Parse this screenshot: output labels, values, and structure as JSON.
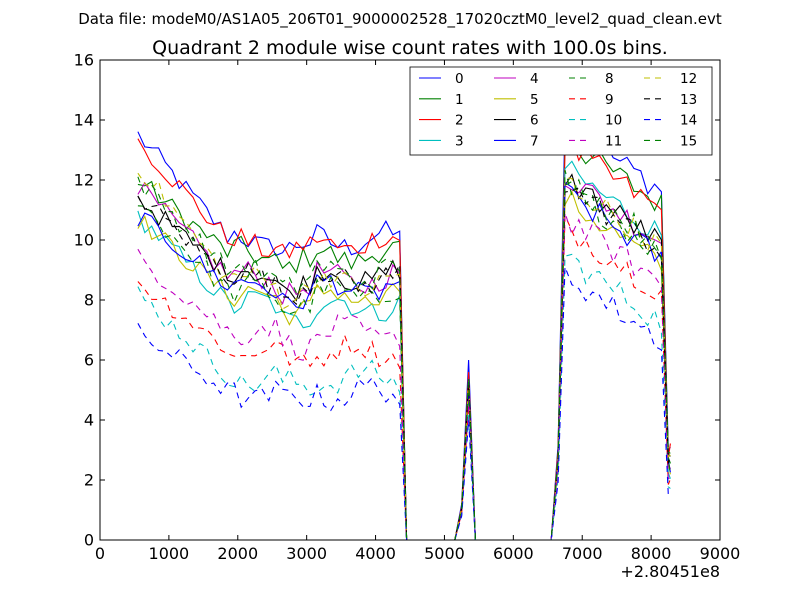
{
  "chart_data": {
    "type": "line",
    "suptitle": "Data file: modeM0/AS1A05_206T01_9000002528_17020cztM0_level2_quad_clean.evt",
    "title": "Quadrant 2 module wise count rates with 100.0s bins.",
    "xlabel": "",
    "ylabel": "",
    "x_offset_label": "+2.80451e8",
    "xlim": [
      0,
      9000
    ],
    "ylim": [
      0,
      16
    ],
    "xticks": [
      0,
      1000,
      2000,
      3000,
      4000,
      5000,
      6000,
      7000,
      8000,
      9000
    ],
    "yticks": [
      0,
      2,
      4,
      6,
      8,
      10,
      12,
      14,
      16
    ],
    "legend_position": "top-right",
    "legend_columns": 4,
    "x": [
      550,
      650,
      750,
      850,
      950,
      1050,
      1150,
      1250,
      1350,
      1450,
      1550,
      1650,
      1750,
      1850,
      1950,
      2050,
      2150,
      2250,
      2350,
      2450,
      2550,
      2650,
      2750,
      2850,
      2950,
      3050,
      3150,
      3250,
      3350,
      3450,
      3550,
      3650,
      3750,
      3850,
      3950,
      4050,
      4150,
      4250,
      4350,
      4450,
      4550,
      4650,
      4750,
      4850,
      4950,
      5050,
      5150,
      5250,
      5350,
      5450,
      5550,
      5650,
      5750,
      5850,
      5950,
      6050,
      6150,
      6250,
      6350,
      6450,
      6550,
      6650,
      6750,
      6850,
      6950,
      7050,
      7150,
      7250,
      7350,
      7450,
      7550,
      7650,
      7750,
      7850,
      7950,
      8050,
      8150,
      8250,
      8280
    ],
    "series": [
      {
        "name": "0",
        "color": "#0000ff",
        "dash": "solid",
        "level": 10.0,
        "start": 13.5,
        "high": 12.7,
        "peak": 6.0
      },
      {
        "name": "1",
        "color": "#008000",
        "dash": "solid",
        "level": 9.5,
        "start": 12.0,
        "high": 12.2,
        "peak": 5.5
      },
      {
        "name": "2",
        "color": "#ff0000",
        "dash": "solid",
        "level": 9.9,
        "start": 13.3,
        "high": 12.0,
        "peak": 5.6
      },
      {
        "name": "3",
        "color": "#00bfbf",
        "dash": "solid",
        "level": 7.8,
        "start": 10.8,
        "high": 11.2,
        "peak": 5.0
      },
      {
        "name": "4",
        "color": "#bf00bf",
        "dash": "solid",
        "level": 8.7,
        "start": 11.8,
        "high": 11.0,
        "peak": 5.2
      },
      {
        "name": "5",
        "color": "#bfbf00",
        "dash": "solid",
        "level": 8.1,
        "start": 10.7,
        "high": 10.2,
        "peak": 5.0
      },
      {
        "name": "6",
        "color": "#000000",
        "dash": "solid",
        "level": 8.8,
        "start": 11.4,
        "high": 10.9,
        "peak": 5.3
      },
      {
        "name": "7",
        "color": "#0000ff",
        "dash": "solid",
        "level": 8.4,
        "start": 10.8,
        "high": 10.4,
        "peak": 5.0
      },
      {
        "name": "8",
        "color": "#008000",
        "dash": "dashed",
        "level": 8.2,
        "start": 11.3,
        "high": 10.6,
        "peak": 5.1
      },
      {
        "name": "9",
        "color": "#ff0000",
        "dash": "dashed",
        "level": 6.3,
        "start": 8.6,
        "high": 9.3,
        "peak": 4.5
      },
      {
        "name": "10",
        "color": "#00bfbf",
        "dash": "dashed",
        "level": 5.4,
        "start": 8.2,
        "high": 8.3,
        "peak": 4.2
      },
      {
        "name": "11",
        "color": "#bf00bf",
        "dash": "dashed",
        "level": 6.9,
        "start": 9.4,
        "high": 9.6,
        "peak": 4.7
      },
      {
        "name": "12",
        "color": "#bfbf00",
        "dash": "dashed",
        "level": 8.6,
        "start": 12.5,
        "high": 10.8,
        "peak": 5.3
      },
      {
        "name": "13",
        "color": "#000000",
        "dash": "dashed",
        "level": 8.7,
        "start": 11.5,
        "high": 10.7,
        "peak": 5.2
      },
      {
        "name": "14",
        "color": "#0000ff",
        "dash": "dashed",
        "level": 4.9,
        "start": 6.9,
        "high": 7.7,
        "peak": 4.0
      },
      {
        "name": "15",
        "color": "#008000",
        "dash": "dashed",
        "level": 8.9,
        "start": 12.0,
        "high": 10.9,
        "peak": 5.4
      }
    ]
  }
}
